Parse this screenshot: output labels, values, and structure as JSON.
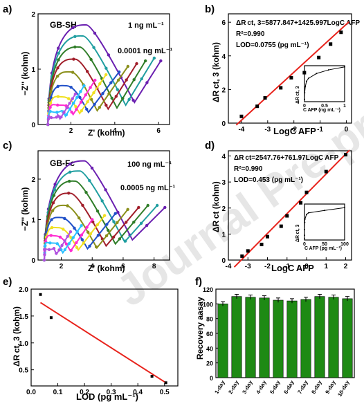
{
  "panels": {
    "a": {
      "label": "a)",
      "name": "GB-SH",
      "xlabel": "Z' (kohm)",
      "ylabel": "−Z'' (kohm)",
      "ann_top": "1 ng mL⁻¹",
      "ann_bottom": "0.0001 ng mL⁻¹"
    },
    "b": {
      "label": "b)",
      "eq": "ΔR ct, 3=5877.847+1425.997LogC AFP",
      "r2": "R²=0.990",
      "lod": "LOD=0.0755 (pg mL⁻¹)",
      "xlabel": "LogC AFP",
      "ylabel": "ΔR ct, 3 (kohm)",
      "inset_xlabel": "C AFP (ng mL⁻¹)",
      "inset_ylabel": "ΔR ct, 3"
    },
    "c": {
      "label": "c)",
      "name": "GB-Fc",
      "xlabel": "Z' (kohm)",
      "ylabel": "−Z'' (kohm)",
      "ann_top": "100 ng mL⁻¹",
      "ann_bottom": "0.0005 ng mL⁻¹"
    },
    "d": {
      "label": "d)",
      "eq": "ΔR ct=2547.76+761.97LogC AFP",
      "r2": "R²=0.990",
      "lod": "LOD=0.453 (pg mL⁻¹)",
      "xlabel": "LogC AFP",
      "ylabel": "ΔR ct (kohm)",
      "inset_xlabel": "C AFP (pg mL⁻¹)",
      "inset_ylabel": "ΔR ct, 3"
    },
    "e": {
      "label": "e)",
      "xlabel": "LOD (pg mL⁻¹)",
      "ylabel": "ΔR ct, 3 (kohm)"
    },
    "f": {
      "label": "f)",
      "ylabel": "Recovery  aasay"
    }
  },
  "watermark": "Journal Pre-proof",
  "colors": {
    "red": "#e8231c",
    "green": "#1e8a14",
    "black": "#000000"
  },
  "nyquist_colors": [
    "#6a1fb0",
    "#1f9ea0",
    "#2f7d28",
    "#a11e2a",
    "#8a8f1a",
    "#2050c8",
    "#f0e020",
    "#ff2ad0",
    "#2ac0ff",
    "#b050e0"
  ],
  "chart_data": [
    {
      "panel": "a",
      "type": "line",
      "xlim": [
        0.5,
        6.5
      ],
      "ylim": [
        0,
        2
      ],
      "xticks": [
        2,
        4,
        6
      ],
      "yticks": [
        0,
        1,
        2
      ],
      "series": [
        {
          "values": [
            [
              0.95,
              0
            ],
            [
              2.7,
              1.8
            ],
            [
              4.9,
              0.4
            ],
            [
              6.1,
              1.15
            ]
          ]
        },
        {
          "values": [
            [
              0.95,
              0
            ],
            [
              2.55,
              1.6
            ],
            [
              4.5,
              0.35
            ],
            [
              5.8,
              1.2
            ]
          ]
        },
        {
          "values": [
            [
              0.95,
              0
            ],
            [
              2.4,
              1.4
            ],
            [
              4.1,
              0.3
            ],
            [
              5.4,
              1.15
            ]
          ]
        },
        {
          "values": [
            [
              0.95,
              0
            ],
            [
              2.2,
              1.18
            ],
            [
              3.7,
              0.28
            ],
            [
              5.0,
              1.1
            ]
          ]
        },
        {
          "values": [
            [
              0.95,
              0
            ],
            [
              2.0,
              0.95
            ],
            [
              3.2,
              0.25
            ],
            [
              4.6,
              1.05
            ]
          ]
        },
        {
          "values": [
            [
              0.95,
              0
            ],
            [
              1.8,
              0.7
            ],
            [
              2.8,
              0.22
            ],
            [
              4.2,
              0.95
            ]
          ]
        },
        {
          "values": [
            [
              0.95,
              0
            ],
            [
              1.6,
              0.5
            ],
            [
              2.4,
              0.2
            ],
            [
              3.6,
              0.9
            ]
          ]
        },
        {
          "values": [
            [
              0.95,
              0
            ],
            [
              1.45,
              0.35
            ],
            [
              2.1,
              0.18
            ],
            [
              3.1,
              0.8
            ]
          ]
        },
        {
          "values": [
            [
              0.95,
              0
            ],
            [
              1.3,
              0.22
            ],
            [
              1.75,
              0.15
            ],
            [
              2.6,
              0.7
            ]
          ]
        },
        {
          "values": [
            [
              0.95,
              0
            ],
            [
              1.2,
              0.12
            ],
            [
              1.5,
              0.1
            ],
            [
              2.2,
              0.55
            ]
          ]
        }
      ]
    },
    {
      "panel": "b",
      "type": "scatter",
      "xlim": [
        -4.5,
        0.2
      ],
      "ylim": [
        0,
        6.5
      ],
      "xticks": [
        -4,
        -3,
        -2,
        -1,
        0
      ],
      "yticks": [
        0,
        2,
        4,
        6
      ],
      "x": [
        -4,
        -3.4,
        -3.1,
        -2.5,
        -2.1,
        -1.6,
        -1.05,
        -0.6,
        -0.2
      ],
      "y": [
        0.4,
        1.0,
        1.5,
        2.1,
        2.7,
        3.0,
        3.9,
        4.7,
        5.4
      ],
      "fit": {
        "intercept": 5.878,
        "slope": 1.426
      },
      "inset": {
        "xlim": [
          0,
          1
        ],
        "ylim": [
          0,
          6
        ],
        "xticks": [
          0,
          0.5,
          1.0
        ],
        "x": [
          0.0001,
          0.005,
          0.02,
          0.05,
          0.1,
          0.3,
          0.6,
          1.0
        ],
        "y": [
          0.4,
          1.5,
          2.5,
          3.4,
          3.9,
          4.7,
          5.3,
          5.8
        ]
      }
    },
    {
      "panel": "c",
      "type": "line",
      "xlim": [
        0.5,
        9
      ],
      "ylim": [
        0,
        2.7
      ],
      "xticks": [
        2,
        4,
        6,
        8
      ],
      "yticks": [
        0,
        1,
        2
      ],
      "series": [
        {
          "values": [
            [
              0.9,
              0
            ],
            [
              3.5,
              2.45
            ],
            [
              6.6,
              0.5
            ],
            [
              8.7,
              1.3
            ]
          ]
        },
        {
          "values": [
            [
              0.9,
              0
            ],
            [
              3.2,
              2.2
            ],
            [
              6.1,
              0.45
            ],
            [
              8.2,
              1.35
            ]
          ]
        },
        {
          "values": [
            [
              0.9,
              0
            ],
            [
              2.9,
              1.95
            ],
            [
              5.5,
              0.4
            ],
            [
              7.6,
              1.35
            ]
          ]
        },
        {
          "values": [
            [
              0.9,
              0
            ],
            [
              2.6,
              1.65
            ],
            [
              4.9,
              0.35
            ],
            [
              7.0,
              1.3
            ]
          ]
        },
        {
          "values": [
            [
              0.9,
              0
            ],
            [
              2.3,
              1.35
            ],
            [
              4.3,
              0.3
            ],
            [
              6.3,
              1.25
            ]
          ]
        },
        {
          "values": [
            [
              0.9,
              0
            ],
            [
              2.0,
              1.05
            ],
            [
              3.7,
              0.28
            ],
            [
              5.5,
              1.15
            ]
          ]
        },
        {
          "values": [
            [
              0.9,
              0
            ],
            [
              1.8,
              0.8
            ],
            [
              3.1,
              0.25
            ],
            [
              4.8,
              1.1
            ]
          ]
        },
        {
          "values": [
            [
              0.9,
              0
            ],
            [
              1.55,
              0.6
            ],
            [
              2.6,
              0.22
            ],
            [
              4.0,
              1.0
            ]
          ]
        },
        {
          "values": [
            [
              0.9,
              0
            ],
            [
              1.35,
              0.42
            ],
            [
              2.1,
              0.18
            ],
            [
              3.3,
              0.85
            ]
          ]
        },
        {
          "values": [
            [
              0.9,
              0
            ],
            [
              1.2,
              0.26
            ],
            [
              1.7,
              0.15
            ],
            [
              2.6,
              0.7
            ]
          ]
        }
      ]
    },
    {
      "panel": "d",
      "type": "scatter",
      "xlim": [
        -4,
        2.3
      ],
      "ylim": [
        0,
        4.2
      ],
      "xticks": [
        -4,
        -3,
        -2,
        -1,
        0,
        1,
        2
      ],
      "yticks": [
        0,
        1,
        2,
        3,
        4
      ],
      "x": [
        -3.3,
        -3.0,
        -2.3,
        -2.0,
        -1.3,
        -1.0,
        -0.3,
        0.0,
        1.0,
        2.0
      ],
      "y": [
        0.15,
        0.35,
        0.6,
        0.9,
        1.3,
        1.7,
        2.2,
        2.6,
        3.4,
        4.05
      ],
      "fit": {
        "intercept": 2.548,
        "slope": 0.762
      },
      "inset": {
        "xlim": [
          0,
          100
        ],
        "ylim": [
          0,
          4.5
        ],
        "xticks": [
          0,
          50,
          100
        ],
        "x": [
          0.0005,
          0.005,
          0.05,
          0.5,
          1,
          5,
          10,
          50,
          100
        ],
        "y": [
          0.15,
          0.6,
          1.3,
          2.2,
          2.6,
          3.2,
          3.4,
          3.7,
          4.05
        ]
      }
    },
    {
      "panel": "e",
      "type": "scatter",
      "xlim": [
        0,
        0.55
      ],
      "ylim": [
        0.2,
        2.0
      ],
      "xticks": [
        0.0,
        0.1,
        0.2,
        0.3,
        0.4,
        0.5
      ],
      "yticks": [
        0.5,
        1.0,
        1.5,
        2.0
      ],
      "x": [
        0.035,
        0.075,
        0.453,
        0.505
      ],
      "y": [
        1.9,
        1.47,
        0.38,
        0.26
      ],
      "fit": [
        [
          0.035,
          1.75
        ],
        [
          0.505,
          0.26
        ]
      ]
    },
    {
      "panel": "f",
      "type": "bar",
      "ylim": [
        0,
        120
      ],
      "yticks": [
        0,
        20,
        40,
        60,
        80,
        100,
        120
      ],
      "categories": [
        "1-day",
        "2-day",
        "3-day",
        "4-day",
        "5-day",
        "6-day",
        "7-day",
        "8-day",
        "9-day",
        "10-day"
      ],
      "values": [
        100,
        110,
        109,
        108,
        105,
        104,
        106,
        110,
        109,
        107
      ],
      "errors": [
        3,
        3,
        3,
        3,
        3,
        3,
        3,
        3,
        3,
        3
      ]
    }
  ]
}
